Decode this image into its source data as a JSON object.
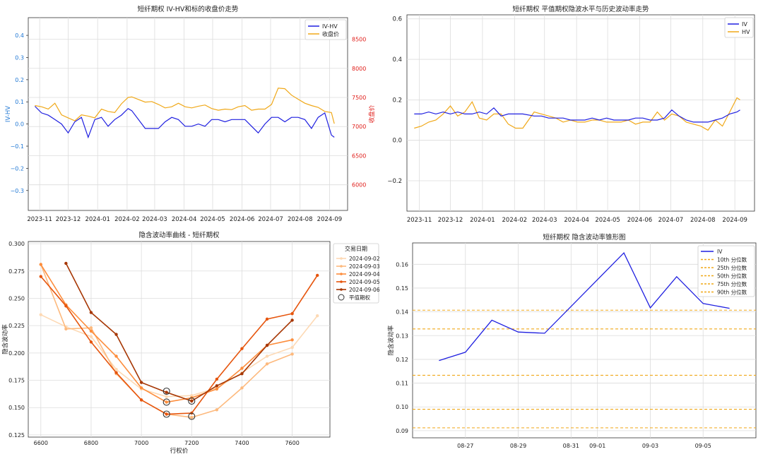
{
  "chart_data": [
    {
      "type": "line",
      "title": "短纤期权 IV-HV和标的收盘价走势",
      "xlabel": "",
      "ylabel": "IV-HV",
      "y2label": "收盘价",
      "ylim": [
        -0.39,
        0.48
      ],
      "y2lim": [
        5560,
        8870
      ],
      "yticks": [
        -0.3,
        -0.2,
        -0.1,
        0.0,
        0.1,
        0.2,
        0.3,
        0.4
      ],
      "ytick_labels": [
        "−0.3",
        "−0.2",
        "−0.1",
        "0.0",
        "0.1",
        "0.2",
        "0.3",
        "0.4"
      ],
      "y2ticks": [
        6000,
        6500,
        7000,
        7500,
        8000,
        8500
      ],
      "y2tick_labels": [
        "6000",
        "6500",
        "7000",
        "7500",
        "8000",
        "8500"
      ],
      "xticks": [
        "2023-11-01",
        "2023-12-01",
        "2024-01-01",
        "2024-02-01",
        "2024-03-01",
        "2024-04-01",
        "2024-05-01",
        "2024-06-01",
        "2024-07-01",
        "2024-08-01",
        "2024-09-01"
      ],
      "xtick_labels": [
        "2023-11",
        "2023-12",
        "2024-01",
        "2024-02",
        "2024-03",
        "2024-04",
        "2024-05",
        "2024-06",
        "2024-07",
        "2024-08",
        "2024-09"
      ],
      "xlim": [
        "2023-10-20",
        "2024-09-20"
      ],
      "grid": true,
      "legend": "top-right",
      "series": [
        {
          "name": "IV-HV",
          "color": "#1f1fe0",
          "axis": "left",
          "x": [
            "2023-10-27",
            "2023-11-03",
            "2023-11-10",
            "2023-11-17",
            "2023-11-24",
            "2023-12-01",
            "2023-12-08",
            "2023-12-15",
            "2023-12-22",
            "2023-12-29",
            "2024-01-05",
            "2024-01-12",
            "2024-01-19",
            "2024-01-26",
            "2024-02-02",
            "2024-02-06",
            "2024-02-20",
            "2024-02-27",
            "2024-03-05",
            "2024-03-12",
            "2024-03-19",
            "2024-03-26",
            "2024-04-02",
            "2024-04-09",
            "2024-04-16",
            "2024-04-23",
            "2024-04-30",
            "2024-05-07",
            "2024-05-14",
            "2024-05-21",
            "2024-05-28",
            "2024-06-04",
            "2024-06-11",
            "2024-06-18",
            "2024-06-25",
            "2024-07-02",
            "2024-07-09",
            "2024-07-16",
            "2024-07-23",
            "2024-07-30",
            "2024-08-06",
            "2024-08-13",
            "2024-08-20",
            "2024-08-27",
            "2024-09-03",
            "2024-09-06"
          ],
          "y": [
            0.08,
            0.05,
            0.04,
            0.02,
            0.0,
            -0.04,
            0.01,
            0.03,
            -0.06,
            0.02,
            0.03,
            -0.01,
            0.02,
            0.04,
            0.07,
            0.06,
            -0.02,
            -0.02,
            -0.02,
            0.01,
            0.03,
            0.02,
            -0.01,
            -0.01,
            0.0,
            -0.01,
            0.02,
            0.02,
            0.01,
            0.02,
            0.02,
            0.02,
            -0.01,
            -0.04,
            0.0,
            0.03,
            0.03,
            0.01,
            0.03,
            0.03,
            0.02,
            -0.02,
            0.03,
            0.05,
            -0.05,
            -0.06
          ]
        },
        {
          "name": "收盘价",
          "color": "#f0a818",
          "axis": "right",
          "x": [
            "2023-10-27",
            "2023-11-03",
            "2023-11-10",
            "2023-11-17",
            "2023-11-24",
            "2023-12-01",
            "2023-12-08",
            "2023-12-15",
            "2023-12-22",
            "2023-12-29",
            "2024-01-05",
            "2024-01-12",
            "2024-01-19",
            "2024-01-26",
            "2024-02-02",
            "2024-02-06",
            "2024-02-20",
            "2024-02-27",
            "2024-03-05",
            "2024-03-12",
            "2024-03-19",
            "2024-03-26",
            "2024-04-02",
            "2024-04-09",
            "2024-04-16",
            "2024-04-23",
            "2024-04-30",
            "2024-05-07",
            "2024-05-14",
            "2024-05-21",
            "2024-05-28",
            "2024-06-04",
            "2024-06-11",
            "2024-06-18",
            "2024-06-25",
            "2024-07-02",
            "2024-07-09",
            "2024-07-16",
            "2024-07-23",
            "2024-07-30",
            "2024-08-06",
            "2024-08-13",
            "2024-08-20",
            "2024-08-27",
            "2024-09-03",
            "2024-09-06"
          ],
          "y": [
            7360,
            7340,
            7300,
            7400,
            7200,
            7150,
            7100,
            7200,
            7180,
            7150,
            7300,
            7260,
            7240,
            7390,
            7500,
            7510,
            7420,
            7430,
            7380,
            7320,
            7340,
            7400,
            7340,
            7320,
            7350,
            7370,
            7310,
            7280,
            7300,
            7290,
            7340,
            7360,
            7280,
            7300,
            7300,
            7380,
            7660,
            7650,
            7540,
            7470,
            7400,
            7360,
            7330,
            7260,
            7240,
            7050
          ]
        }
      ]
    },
    {
      "type": "line",
      "title": "短纤期权 平值期权隐波水平与历史波动率走势",
      "xlabel": "",
      "ylabel": "",
      "ylim": [
        -0.35,
        0.62
      ],
      "yticks": [
        -0.2,
        0.0,
        0.2,
        0.4,
        0.6
      ],
      "ytick_labels": [
        "−0.2",
        "0.0",
        "0.2",
        "0.4",
        "0.6"
      ],
      "xticks": [
        "2023-11-01",
        "2023-12-01",
        "2024-01-01",
        "2024-02-01",
        "2024-03-01",
        "2024-04-01",
        "2024-05-01",
        "2024-06-01",
        "2024-07-01",
        "2024-08-01",
        "2024-09-01"
      ],
      "xtick_labels": [
        "2023-11",
        "2023-12",
        "2024-01",
        "2024-02",
        "2024-03",
        "2024-04",
        "2024-05",
        "2024-06",
        "2024-07",
        "2024-08",
        "2024-09"
      ],
      "xlim": [
        "2023-10-20",
        "2024-09-20"
      ],
      "grid": true,
      "legend": "top-right",
      "series": [
        {
          "name": "IV",
          "color": "#1f1fe0",
          "x": [
            "2023-10-27",
            "2023-11-03",
            "2023-11-10",
            "2023-11-17",
            "2023-11-24",
            "2023-12-01",
            "2023-12-08",
            "2023-12-15",
            "2023-12-22",
            "2023-12-29",
            "2024-01-05",
            "2024-01-12",
            "2024-01-19",
            "2024-01-26",
            "2024-02-02",
            "2024-02-09",
            "2024-02-20",
            "2024-02-27",
            "2024-03-05",
            "2024-03-12",
            "2024-03-19",
            "2024-03-26",
            "2024-04-02",
            "2024-04-09",
            "2024-04-16",
            "2024-04-23",
            "2024-04-30",
            "2024-05-07",
            "2024-05-14",
            "2024-05-21",
            "2024-05-28",
            "2024-06-04",
            "2024-06-11",
            "2024-06-18",
            "2024-06-25",
            "2024-07-02",
            "2024-07-09",
            "2024-07-16",
            "2024-07-23",
            "2024-07-30",
            "2024-08-06",
            "2024-08-13",
            "2024-08-20",
            "2024-08-27",
            "2024-09-03",
            "2024-09-06"
          ],
          "y": [
            0.13,
            0.13,
            0.14,
            0.13,
            0.14,
            0.13,
            0.14,
            0.13,
            0.13,
            0.14,
            0.13,
            0.16,
            0.12,
            0.13,
            0.13,
            0.13,
            0.12,
            0.12,
            0.11,
            0.11,
            0.11,
            0.1,
            0.1,
            0.1,
            0.11,
            0.1,
            0.11,
            0.1,
            0.1,
            0.1,
            0.11,
            0.11,
            0.1,
            0.1,
            0.11,
            0.15,
            0.12,
            0.1,
            0.09,
            0.09,
            0.09,
            0.1,
            0.11,
            0.13,
            0.14,
            0.15
          ]
        },
        {
          "name": "HV",
          "color": "#f0a818",
          "x": [
            "2023-10-27",
            "2023-11-03",
            "2023-11-10",
            "2023-11-17",
            "2023-11-24",
            "2023-12-01",
            "2023-12-08",
            "2023-12-15",
            "2023-12-22",
            "2023-12-29",
            "2024-01-05",
            "2024-01-12",
            "2024-01-19",
            "2024-01-26",
            "2024-02-02",
            "2024-02-09",
            "2024-02-20",
            "2024-02-27",
            "2024-03-05",
            "2024-03-12",
            "2024-03-19",
            "2024-03-26",
            "2024-04-02",
            "2024-04-09",
            "2024-04-16",
            "2024-04-23",
            "2024-04-30",
            "2024-05-07",
            "2024-05-14",
            "2024-05-21",
            "2024-05-28",
            "2024-06-04",
            "2024-06-11",
            "2024-06-18",
            "2024-06-25",
            "2024-07-02",
            "2024-07-09",
            "2024-07-16",
            "2024-07-23",
            "2024-07-30",
            "2024-08-06",
            "2024-08-13",
            "2024-08-20",
            "2024-08-27",
            "2024-09-03",
            "2024-09-06"
          ],
          "y": [
            0.06,
            0.07,
            0.09,
            0.1,
            0.13,
            0.17,
            0.12,
            0.14,
            0.19,
            0.11,
            0.1,
            0.13,
            0.13,
            0.08,
            0.06,
            0.06,
            0.14,
            0.13,
            0.12,
            0.11,
            0.09,
            0.1,
            0.09,
            0.09,
            0.1,
            0.1,
            0.09,
            0.09,
            0.09,
            0.1,
            0.08,
            0.09,
            0.09,
            0.14,
            0.1,
            0.13,
            0.12,
            0.09,
            0.08,
            0.07,
            0.05,
            0.1,
            0.07,
            0.14,
            0.21,
            0.2
          ]
        }
      ]
    },
    {
      "type": "line",
      "title": "隐含波动率曲线 - 短纤期权",
      "xlabel": "行权价",
      "ylabel": "隐含波动率",
      "xlim": [
        6550,
        7750
      ],
      "ylim": [
        0.123,
        0.302
      ],
      "xticks": [
        6600,
        6800,
        7000,
        7200,
        7400,
        7600
      ],
      "yticks": [
        0.125,
        0.15,
        0.175,
        0.2,
        0.225,
        0.25,
        0.275,
        0.3
      ],
      "ytick_labels": [
        "0.125",
        "0.150",
        "0.175",
        "0.200",
        "0.225",
        "0.250",
        "0.275",
        "0.300"
      ],
      "grid": true,
      "legend": "top-right",
      "legend_title": "交易日期",
      "atm_label": "平值期权",
      "series": [
        {
          "name": "2024-09-02",
          "color": "#fdd9b4",
          "x": [
            6600,
            6700,
            6800,
            6900,
            7000,
            7100,
            7200,
            7300,
            7400,
            7500,
            7600,
            7700
          ],
          "y": [
            0.235,
            0.224,
            0.215,
            0.185,
            0.167,
            0.16,
            0.161,
            0.168,
            0.182,
            0.197,
            0.205,
            0.234
          ]
        },
        {
          "name": "2024-09-03",
          "color": "#fdb97d",
          "x": [
            6600,
            6700,
            6800,
            6900,
            7000,
            7100,
            7200,
            7300,
            7400,
            7500,
            7600
          ],
          "y": [
            0.281,
            0.222,
            0.223,
            0.181,
            0.157,
            0.144,
            0.141,
            0.148,
            0.168,
            0.19,
            0.199
          ]
        },
        {
          "name": "2024-09-04",
          "color": "#fd8d3c",
          "x": [
            6600,
            6700,
            6800,
            6900,
            7000,
            7100,
            7200,
            7300,
            7400,
            7500,
            7600
          ],
          "y": [
            0.281,
            0.244,
            0.22,
            0.197,
            0.168,
            0.155,
            0.159,
            0.167,
            0.186,
            0.207,
            0.212
          ]
        },
        {
          "name": "2024-09-05",
          "color": "#e6550d",
          "x": [
            6600,
            6700,
            6800,
            6900,
            7000,
            7100,
            7200,
            7300,
            7400,
            7500,
            7600,
            7700
          ],
          "y": [
            0.27,
            0.243,
            0.21,
            0.182,
            0.157,
            0.144,
            0.145,
            0.176,
            0.204,
            0.231,
            0.236,
            0.271
          ]
        },
        {
          "name": "2024-09-06",
          "color": "#a63603",
          "x": [
            6700,
            6800,
            6900,
            7000,
            7100,
            7200,
            7300,
            7400,
            7500,
            7600
          ],
          "y": [
            0.282,
            0.237,
            0.217,
            0.173,
            0.164,
            0.156,
            0.17,
            0.181,
            0.207,
            0.23
          ]
        }
      ],
      "atm_points": [
        {
          "x": 7100,
          "y": 0.165
        },
        {
          "x": 7100,
          "y": 0.155
        },
        {
          "x": 7100,
          "y": 0.144
        },
        {
          "x": 7200,
          "y": 0.156
        },
        {
          "x": 7200,
          "y": 0.142
        }
      ]
    },
    {
      "type": "line",
      "title": "短纤期权 隐含波动率锥形图",
      "xlabel": "",
      "ylabel": "隐含波动率",
      "xlim": [
        "2024-08-25",
        "2024-09-07"
      ],
      "ylim": [
        0.087,
        0.169
      ],
      "xticks": [
        "2024-08-27",
        "2024-08-29",
        "2024-08-31",
        "2024-09-01",
        "2024-09-03",
        "2024-09-05"
      ],
      "xtick_labels": [
        "08-27",
        "08-29",
        "08-31",
        "09-01",
        "09-03",
        "09-05"
      ],
      "yticks": [
        0.09,
        0.1,
        0.11,
        0.12,
        0.13,
        0.14,
        0.15,
        0.16
      ],
      "ytick_labels": [
        "0.09",
        "0.10",
        "0.11",
        "0.12",
        "0.13",
        "0.14",
        "0.15",
        "0.16"
      ],
      "grid": true,
      "legend": "top-right",
      "series": [
        {
          "name": "IV",
          "color": "#1f1fe0",
          "x": [
            "2024-08-26",
            "2024-08-27",
            "2024-08-28",
            "2024-08-29",
            "2024-08-30",
            "2024-09-02",
            "2024-09-03",
            "2024-09-04",
            "2024-09-05",
            "2024-09-06"
          ],
          "y": [
            0.1195,
            0.123,
            0.1365,
            0.1315,
            0.131,
            0.1648,
            0.1417,
            0.1548,
            0.1435,
            0.1415
          ]
        }
      ],
      "percentiles": [
        {
          "name": "10th 分位数",
          "value": 0.0912,
          "color": "#f0a818"
        },
        {
          "name": "25th 分位数",
          "value": 0.099,
          "color": "#f0a818"
        },
        {
          "name": "50th 分位数",
          "value": 0.1133,
          "color": "#f0a818"
        },
        {
          "name": "75th 分位数",
          "value": 0.1328,
          "color": "#f0a818"
        },
        {
          "name": "90th 分位数",
          "value": 0.1407,
          "color": "#f0a818"
        }
      ]
    }
  ]
}
